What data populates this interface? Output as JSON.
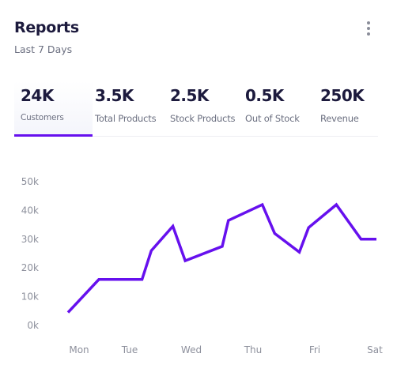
{
  "header": {
    "title": "Reports",
    "subtitle": "Last 7 Days",
    "menu_icon": "kebab-menu-icon"
  },
  "tabs": [
    {
      "value": "24K",
      "label": "Customers",
      "active": true
    },
    {
      "value": "3.5K",
      "label": "Total Products",
      "active": false
    },
    {
      "value": "2.5K",
      "label": "Stock Products",
      "active": false
    },
    {
      "value": "0.5K",
      "label": "Out of Stock",
      "active": false
    },
    {
      "value": "250K",
      "label": "Revenue",
      "active": false
    }
  ],
  "colors": {
    "accent": "#6610ee",
    "title": "#1c1a3d",
    "muted": "#6b6f80"
  },
  "chart_data": {
    "type": "line",
    "x_ticks": [
      "Mon",
      "Tue",
      "Wed",
      "Thu",
      "Fri",
      "Sat"
    ],
    "y_ticks": [
      "0k",
      "10k",
      "20k",
      "30k",
      "40k",
      "50k"
    ],
    "ylim": [
      0,
      50000
    ],
    "x": [
      0,
      0.5,
      1.0,
      1.2,
      1.35,
      1.7,
      1.9,
      2.5,
      2.6,
      3.15,
      3.35,
      3.75,
      3.9,
      4.35,
      4.75,
      5.0
    ],
    "series": [
      {
        "values": [
          4500,
          16000,
          16000,
          16000,
          26000,
          34500,
          22500,
          27500,
          36500,
          42000,
          32000,
          25500,
          34000,
          42000,
          30000,
          30000
        ]
      }
    ],
    "grid": false,
    "legend": "none"
  }
}
